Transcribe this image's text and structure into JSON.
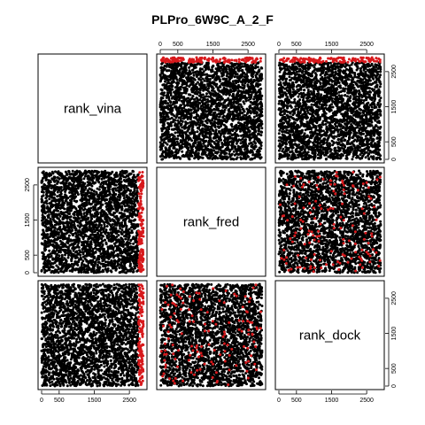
{
  "chart_data": {
    "type": "scatter",
    "title": "PLPro_6W9C_A_2_F",
    "variables": [
      "rank_vina",
      "rank_fred",
      "rank_dock"
    ],
    "axis_range": [
      0,
      2900
    ],
    "ticks": [
      0,
      500,
      1500,
      2500
    ],
    "tick_labels": [
      "0",
      "500",
      "1500",
      "2500"
    ],
    "n_points": 2900,
    "highlight_rule": "points with rank_vina >= 2760 are drawn in red",
    "highlight_threshold": 2760,
    "colors": {
      "points": "#000000",
      "highlight": "#d7191c"
    },
    "grid": false,
    "legend": "none"
  }
}
